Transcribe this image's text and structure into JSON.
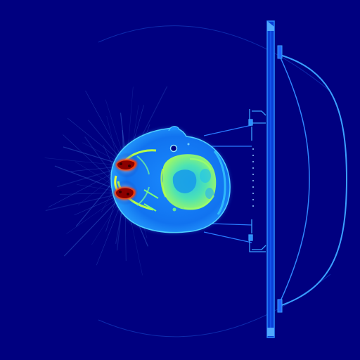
{
  "image": {
    "kind": "axial CT slice, jet colormap",
    "colormap": "jet",
    "colors": {
      "background": "#000080",
      "soft_tissue": "#0a6fe8",
      "tissue_edge": "#3ec8ff",
      "bone": "#7dff7a",
      "dense_bone": "#d8ff3a",
      "metal_artifact": "#8b0000",
      "metal_halo": "#ff3a00",
      "table_line": "#1f8fff",
      "streak": "#5aa8ff"
    },
    "features": [
      "head-outline",
      "dental-metal-artifacts",
      "radial-streak-artifacts",
      "patient-table",
      "head-holder-frame",
      "table-brackets"
    ]
  }
}
